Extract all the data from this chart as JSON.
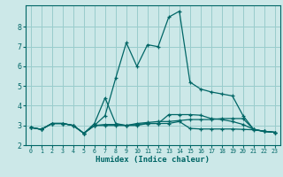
{
  "xlabel": "Humidex (Indice chaleur)",
  "xlim": [
    -0.5,
    23.5
  ],
  "ylim": [
    2.0,
    9.1
  ],
  "yticks": [
    2,
    3,
    4,
    5,
    6,
    7,
    8
  ],
  "xticks": [
    0,
    1,
    2,
    3,
    4,
    5,
    6,
    7,
    8,
    9,
    10,
    11,
    12,
    13,
    14,
    15,
    16,
    17,
    18,
    19,
    20,
    21,
    22,
    23
  ],
  "bg_color": "#cce8e8",
  "grid_color": "#99cccc",
  "line_color": "#006666",
  "curves": [
    [
      2.9,
      2.8,
      3.1,
      3.1,
      3.0,
      2.6,
      3.0,
      3.5,
      5.4,
      7.2,
      6.0,
      7.1,
      7.0,
      8.5,
      8.8,
      5.2,
      4.85,
      4.7,
      4.6,
      4.5,
      3.5,
      2.8,
      2.7,
      2.65
    ],
    [
      2.9,
      2.8,
      3.1,
      3.1,
      3.0,
      2.6,
      3.1,
      4.4,
      3.1,
      3.0,
      3.1,
      3.15,
      3.2,
      3.2,
      3.25,
      3.3,
      3.3,
      3.3,
      3.35,
      3.35,
      3.35,
      2.8,
      2.7,
      2.65
    ],
    [
      2.9,
      2.8,
      3.1,
      3.1,
      3.0,
      2.6,
      3.0,
      3.05,
      3.05,
      3.0,
      3.05,
      3.1,
      3.1,
      3.55,
      3.55,
      3.55,
      3.52,
      3.35,
      3.3,
      3.2,
      3.05,
      2.8,
      2.7,
      2.65
    ],
    [
      2.9,
      2.8,
      3.1,
      3.1,
      3.0,
      2.6,
      3.0,
      3.0,
      3.0,
      3.0,
      3.0,
      3.1,
      3.1,
      3.1,
      3.2,
      2.85,
      2.82,
      2.82,
      2.82,
      2.82,
      2.8,
      2.78,
      2.7,
      2.65
    ]
  ]
}
